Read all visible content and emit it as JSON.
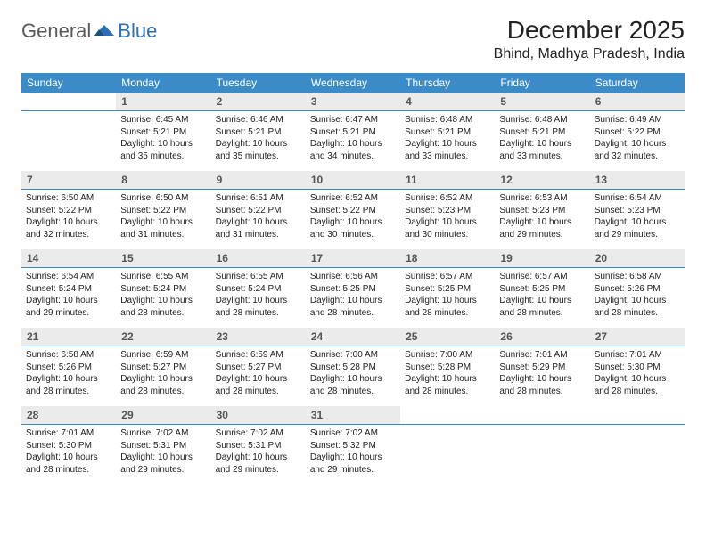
{
  "logo": {
    "general": "General",
    "blue": "Blue"
  },
  "title": "December 2025",
  "location": "Bhind, Madhya Pradesh, India",
  "colors": {
    "header_bg": "#3b8bc9",
    "header_text": "#ffffff",
    "daynum_bg": "#ebebeb",
    "daynum_text": "#555555",
    "rule": "#3b8bc9",
    "body_text": "#222222",
    "logo_gray": "#5a5a5a",
    "logo_blue": "#2d6fb5"
  },
  "day_names": [
    "Sunday",
    "Monday",
    "Tuesday",
    "Wednesday",
    "Thursday",
    "Friday",
    "Saturday"
  ],
  "weeks": [
    [
      null,
      {
        "n": "1",
        "sr": "Sunrise: 6:45 AM",
        "ss": "Sunset: 5:21 PM",
        "d1": "Daylight: 10 hours",
        "d2": "and 35 minutes."
      },
      {
        "n": "2",
        "sr": "Sunrise: 6:46 AM",
        "ss": "Sunset: 5:21 PM",
        "d1": "Daylight: 10 hours",
        "d2": "and 35 minutes."
      },
      {
        "n": "3",
        "sr": "Sunrise: 6:47 AM",
        "ss": "Sunset: 5:21 PM",
        "d1": "Daylight: 10 hours",
        "d2": "and 34 minutes."
      },
      {
        "n": "4",
        "sr": "Sunrise: 6:48 AM",
        "ss": "Sunset: 5:21 PM",
        "d1": "Daylight: 10 hours",
        "d2": "and 33 minutes."
      },
      {
        "n": "5",
        "sr": "Sunrise: 6:48 AM",
        "ss": "Sunset: 5:21 PM",
        "d1": "Daylight: 10 hours",
        "d2": "and 33 minutes."
      },
      {
        "n": "6",
        "sr": "Sunrise: 6:49 AM",
        "ss": "Sunset: 5:22 PM",
        "d1": "Daylight: 10 hours",
        "d2": "and 32 minutes."
      }
    ],
    [
      {
        "n": "7",
        "sr": "Sunrise: 6:50 AM",
        "ss": "Sunset: 5:22 PM",
        "d1": "Daylight: 10 hours",
        "d2": "and 32 minutes."
      },
      {
        "n": "8",
        "sr": "Sunrise: 6:50 AM",
        "ss": "Sunset: 5:22 PM",
        "d1": "Daylight: 10 hours",
        "d2": "and 31 minutes."
      },
      {
        "n": "9",
        "sr": "Sunrise: 6:51 AM",
        "ss": "Sunset: 5:22 PM",
        "d1": "Daylight: 10 hours",
        "d2": "and 31 minutes."
      },
      {
        "n": "10",
        "sr": "Sunrise: 6:52 AM",
        "ss": "Sunset: 5:22 PM",
        "d1": "Daylight: 10 hours",
        "d2": "and 30 minutes."
      },
      {
        "n": "11",
        "sr": "Sunrise: 6:52 AM",
        "ss": "Sunset: 5:23 PM",
        "d1": "Daylight: 10 hours",
        "d2": "and 30 minutes."
      },
      {
        "n": "12",
        "sr": "Sunrise: 6:53 AM",
        "ss": "Sunset: 5:23 PM",
        "d1": "Daylight: 10 hours",
        "d2": "and 29 minutes."
      },
      {
        "n": "13",
        "sr": "Sunrise: 6:54 AM",
        "ss": "Sunset: 5:23 PM",
        "d1": "Daylight: 10 hours",
        "d2": "and 29 minutes."
      }
    ],
    [
      {
        "n": "14",
        "sr": "Sunrise: 6:54 AM",
        "ss": "Sunset: 5:24 PM",
        "d1": "Daylight: 10 hours",
        "d2": "and 29 minutes."
      },
      {
        "n": "15",
        "sr": "Sunrise: 6:55 AM",
        "ss": "Sunset: 5:24 PM",
        "d1": "Daylight: 10 hours",
        "d2": "and 28 minutes."
      },
      {
        "n": "16",
        "sr": "Sunrise: 6:55 AM",
        "ss": "Sunset: 5:24 PM",
        "d1": "Daylight: 10 hours",
        "d2": "and 28 minutes."
      },
      {
        "n": "17",
        "sr": "Sunrise: 6:56 AM",
        "ss": "Sunset: 5:25 PM",
        "d1": "Daylight: 10 hours",
        "d2": "and 28 minutes."
      },
      {
        "n": "18",
        "sr": "Sunrise: 6:57 AM",
        "ss": "Sunset: 5:25 PM",
        "d1": "Daylight: 10 hours",
        "d2": "and 28 minutes."
      },
      {
        "n": "19",
        "sr": "Sunrise: 6:57 AM",
        "ss": "Sunset: 5:25 PM",
        "d1": "Daylight: 10 hours",
        "d2": "and 28 minutes."
      },
      {
        "n": "20",
        "sr": "Sunrise: 6:58 AM",
        "ss": "Sunset: 5:26 PM",
        "d1": "Daylight: 10 hours",
        "d2": "and 28 minutes."
      }
    ],
    [
      {
        "n": "21",
        "sr": "Sunrise: 6:58 AM",
        "ss": "Sunset: 5:26 PM",
        "d1": "Daylight: 10 hours",
        "d2": "and 28 minutes."
      },
      {
        "n": "22",
        "sr": "Sunrise: 6:59 AM",
        "ss": "Sunset: 5:27 PM",
        "d1": "Daylight: 10 hours",
        "d2": "and 28 minutes."
      },
      {
        "n": "23",
        "sr": "Sunrise: 6:59 AM",
        "ss": "Sunset: 5:27 PM",
        "d1": "Daylight: 10 hours",
        "d2": "and 28 minutes."
      },
      {
        "n": "24",
        "sr": "Sunrise: 7:00 AM",
        "ss": "Sunset: 5:28 PM",
        "d1": "Daylight: 10 hours",
        "d2": "and 28 minutes."
      },
      {
        "n": "25",
        "sr": "Sunrise: 7:00 AM",
        "ss": "Sunset: 5:28 PM",
        "d1": "Daylight: 10 hours",
        "d2": "and 28 minutes."
      },
      {
        "n": "26",
        "sr": "Sunrise: 7:01 AM",
        "ss": "Sunset: 5:29 PM",
        "d1": "Daylight: 10 hours",
        "d2": "and 28 minutes."
      },
      {
        "n": "27",
        "sr": "Sunrise: 7:01 AM",
        "ss": "Sunset: 5:30 PM",
        "d1": "Daylight: 10 hours",
        "d2": "and 28 minutes."
      }
    ],
    [
      {
        "n": "28",
        "sr": "Sunrise: 7:01 AM",
        "ss": "Sunset: 5:30 PM",
        "d1": "Daylight: 10 hours",
        "d2": "and 28 minutes."
      },
      {
        "n": "29",
        "sr": "Sunrise: 7:02 AM",
        "ss": "Sunset: 5:31 PM",
        "d1": "Daylight: 10 hours",
        "d2": "and 29 minutes."
      },
      {
        "n": "30",
        "sr": "Sunrise: 7:02 AM",
        "ss": "Sunset: 5:31 PM",
        "d1": "Daylight: 10 hours",
        "d2": "and 29 minutes."
      },
      {
        "n": "31",
        "sr": "Sunrise: 7:02 AM",
        "ss": "Sunset: 5:32 PM",
        "d1": "Daylight: 10 hours",
        "d2": "and 29 minutes."
      },
      null,
      null,
      null
    ]
  ]
}
